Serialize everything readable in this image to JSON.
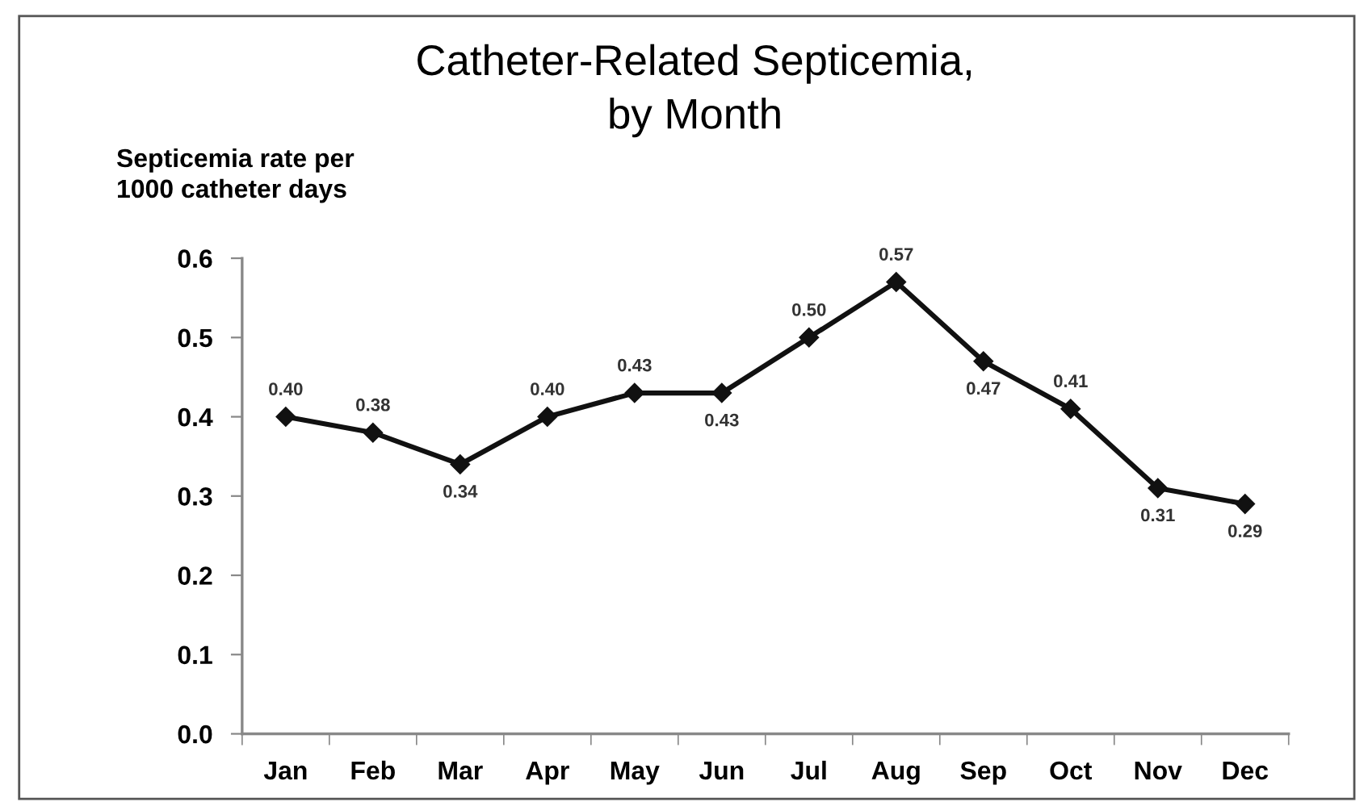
{
  "chart_data": {
    "type": "line",
    "title": "Catheter-Related Septicemia,\nby Month",
    "ylabel": "Septicemia rate per\n1000 catheter days",
    "categories": [
      "Jan",
      "Feb",
      "Mar",
      "Apr",
      "May",
      "Jun",
      "Jul",
      "Aug",
      "Sep",
      "Oct",
      "Nov",
      "Dec"
    ],
    "series": [
      {
        "color": "#111111",
        "values": [
          0.4,
          0.38,
          0.34,
          0.4,
          0.43,
          0.43,
          0.5,
          0.57,
          0.47,
          0.41,
          0.31,
          0.29
        ],
        "value_labels": [
          "0.40",
          "0.38",
          "0.34",
          "0.40",
          "0.43",
          "0.43",
          "0.50",
          "0.57",
          "0.47",
          "0.41",
          "0.31",
          "0.29"
        ]
      }
    ],
    "ylim": [
      0,
      0.6
    ],
    "yticks": [
      {
        "value": 0,
        "label": "0.0"
      },
      {
        "value": 0.1,
        "label": "0.1"
      },
      {
        "value": 0.2,
        "label": "0.2"
      },
      {
        "value": 0.3,
        "label": "0.3"
      },
      {
        "value": 0.4,
        "label": "0.4"
      },
      {
        "value": 0.5,
        "label": "0.5"
      },
      {
        "value": 0.6,
        "label": "0.6"
      }
    ],
    "marker": "diamond",
    "line_style": "solid",
    "grid": false
  }
}
